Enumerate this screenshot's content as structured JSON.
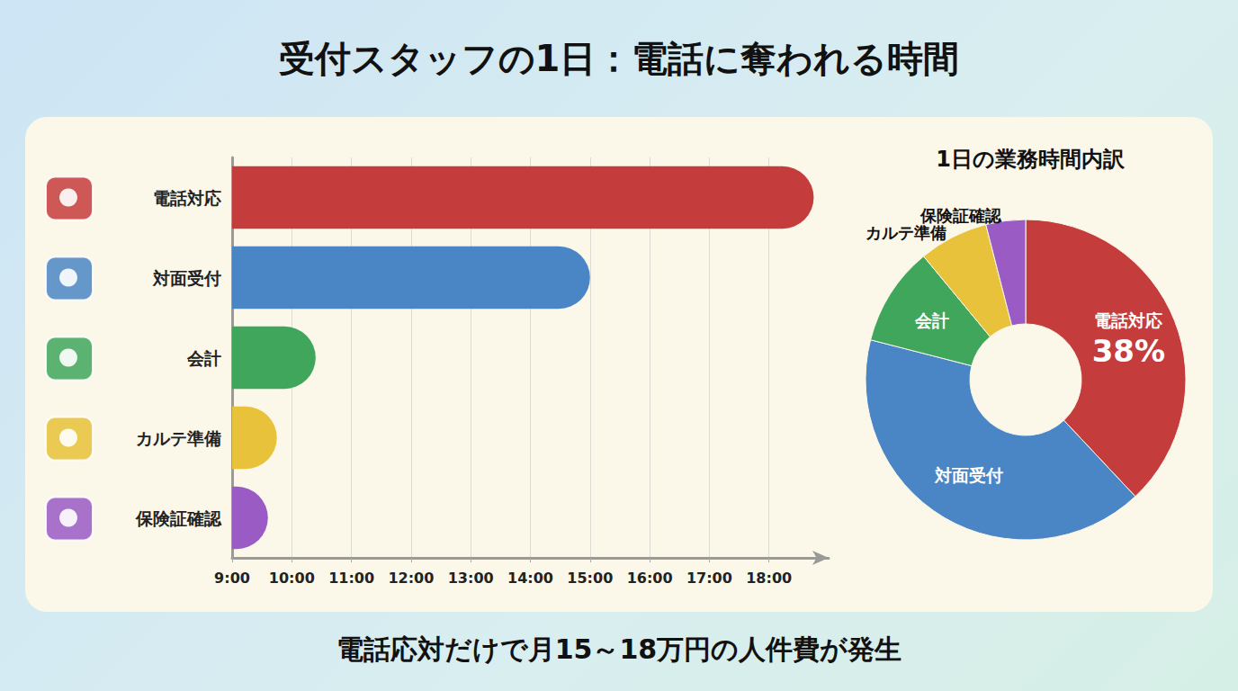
{
  "title": "受付スタッフの1日：電話に奪われる時間",
  "caption": "電話応対だけで月15～18万円の人件費が発生",
  "chart_data": [
    {
      "type": "bar",
      "orientation": "horizontal",
      "categories": [
        "電話対応",
        "対面受付",
        "会計",
        "カルテ準備",
        "保険証確認"
      ],
      "values": [
        18.75,
        15,
        10.4,
        9.75,
        9.6
      ],
      "colors": [
        "#c43c3c",
        "#4a86c5",
        "#3fa65c",
        "#e8c23a",
        "#9a5bc4"
      ],
      "xlim": [
        9,
        19
      ],
      "xticks": [
        {
          "value": 9,
          "label": "9:00"
        },
        {
          "value": 10,
          "label": "10:00"
        },
        {
          "value": 11,
          "label": "11:00"
        },
        {
          "value": 12,
          "label": "12:00"
        },
        {
          "value": 13,
          "label": "13:00"
        },
        {
          "value": 14,
          "label": "14:00"
        },
        {
          "value": 15,
          "label": "15:00"
        },
        {
          "value": 16,
          "label": "16:00"
        },
        {
          "value": 17,
          "label": "17:00"
        },
        {
          "value": 18,
          "label": "18:00"
        }
      ],
      "grid": true
    },
    {
      "type": "pie",
      "title": "1日の業務時間内訳",
      "categories": [
        "電話対応",
        "対面受付",
        "会計",
        "カルテ準備",
        "保険証確認"
      ],
      "values": [
        38,
        41,
        10,
        7,
        4
      ],
      "value_labels": [
        "38%",
        null,
        null,
        null,
        null
      ],
      "colors": [
        "#c43c3c",
        "#4a86c5",
        "#3fa65c",
        "#e8c23a",
        "#9a5bc4"
      ],
      "data_labels": true
    }
  ]
}
